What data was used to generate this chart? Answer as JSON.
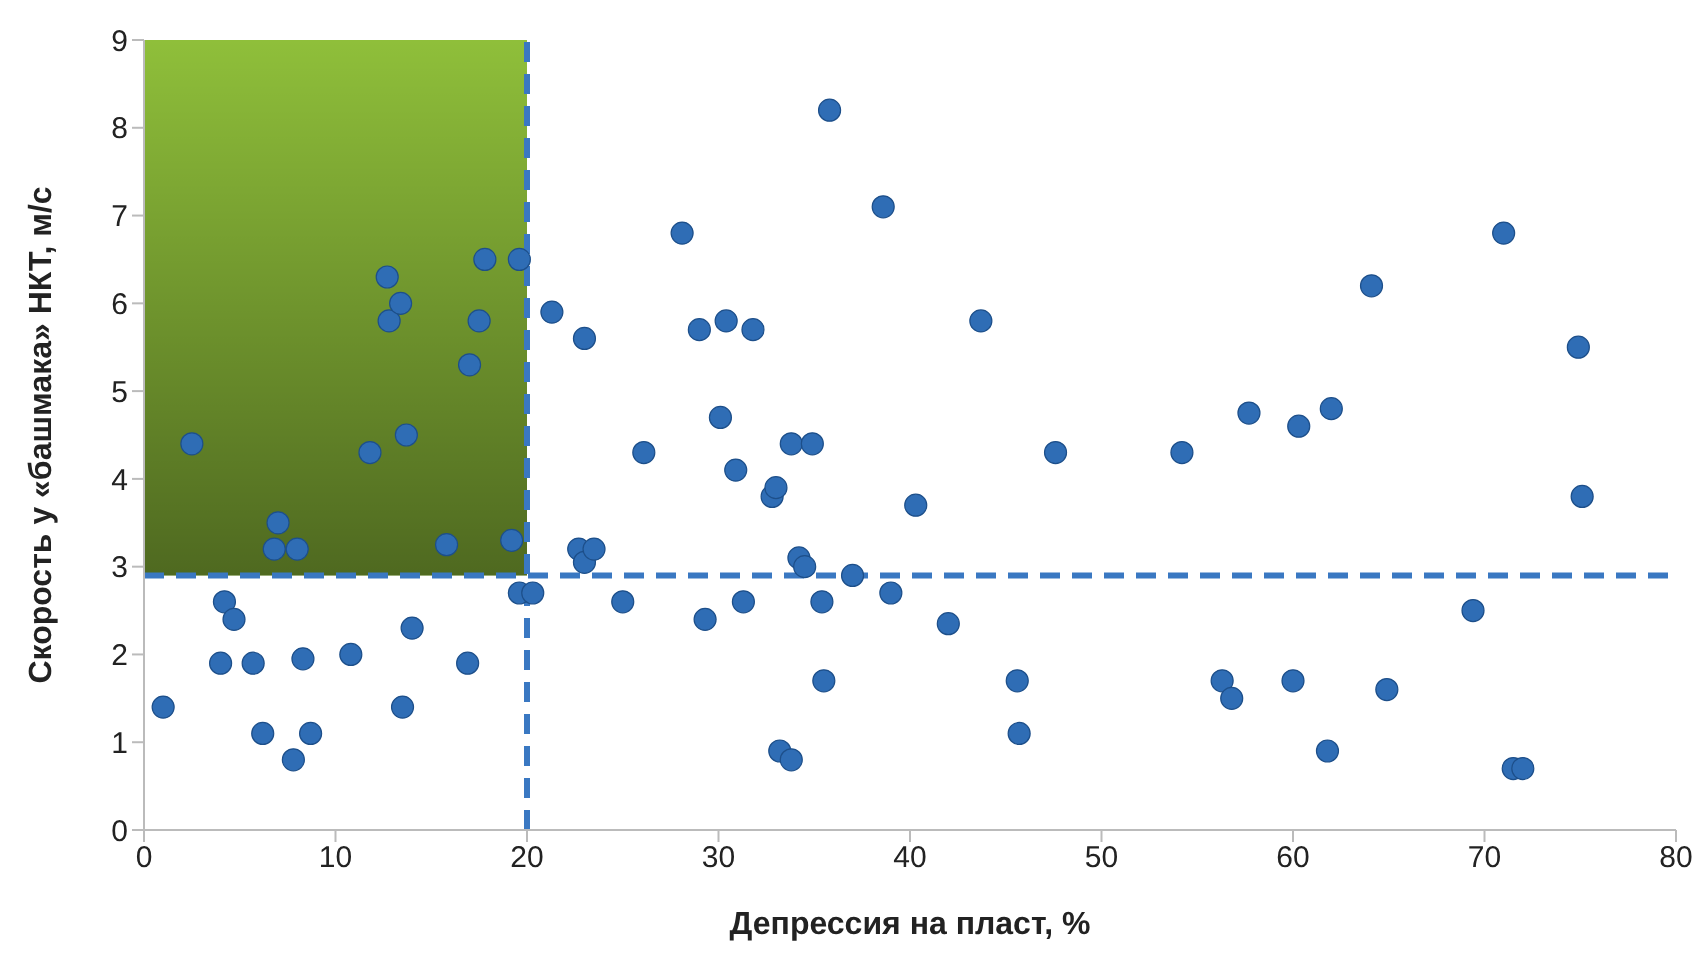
{
  "chart_data": {
    "type": "scatter",
    "xlabel": "Депрессия на пласт, %",
    "ylabel": "Скорость у «башмака» НКТ, м/с",
    "xlim": [
      0,
      80
    ],
    "xticks": [
      0,
      10,
      20,
      30,
      40,
      50,
      60,
      70,
      80
    ],
    "ylim": [
      0,
      9
    ],
    "yticks": [
      0,
      1,
      2,
      3,
      4,
      5,
      6,
      7,
      8,
      9
    ],
    "marker": "circle",
    "series": [
      {
        "color": "#2f6db5",
        "x": [
          1,
          2.5,
          4,
          4.2,
          4.7,
          5.7,
          6.2,
          6.8,
          7,
          7.8,
          8,
          8.3,
          8.7,
          10.8,
          11.8,
          12.7,
          12.8,
          13.4,
          13.5,
          13.7,
          14,
          15.8,
          16.9,
          17,
          17.5,
          17.8,
          19.2,
          19.6,
          19.6,
          20.3,
          21.3,
          22.7,
          23,
          23,
          23.5,
          25,
          26.1,
          28.1,
          29,
          29.3,
          30.1,
          30.4,
          30.9,
          31.3,
          31.8,
          32.8,
          33,
          33.2,
          33.8,
          33.8,
          34.2,
          34.5,
          34.9,
          35.4,
          35.5,
          35.8,
          37,
          38.6,
          39,
          40.3,
          42,
          43.7,
          45.6,
          45.7,
          47.6,
          54.2,
          56.3,
          56.8,
          57.7,
          60,
          60.3,
          61.8,
          62,
          64.1,
          64.9,
          69.4,
          71,
          71.5,
          72,
          74.9,
          75.1
        ],
        "values": [
          1.4,
          4.4,
          1.9,
          2.6,
          2.4,
          1.9,
          1.1,
          3.2,
          3.5,
          0.8,
          3.2,
          1.95,
          1.1,
          2,
          4.3,
          6.3,
          5.8,
          6,
          1.4,
          4.5,
          2.3,
          3.25,
          1.9,
          5.3,
          5.8,
          6.5,
          3.3,
          6.5,
          2.7,
          2.7,
          5.9,
          3.2,
          3.05,
          5.6,
          3.2,
          2.6,
          4.3,
          6.8,
          5.7,
          2.4,
          4.7,
          5.8,
          4.1,
          2.6,
          5.7,
          3.8,
          3.9,
          0.9,
          4.4,
          0.8,
          3.1,
          3,
          4.4,
          2.6,
          1.7,
          8.2,
          2.9,
          7.1,
          2.7,
          3.7,
          2.35,
          5.8,
          1.7,
          1.1,
          4.3,
          4.3,
          1.7,
          1.5,
          4.75,
          1.7,
          4.6,
          0.9,
          4.8,
          6.2,
          1.6,
          2.5,
          6.8,
          0.7,
          0.7,
          5.5,
          3.8
        ]
      }
    ],
    "ref_lines": [
      {
        "axis": "x",
        "value": 20,
        "color": "#3a78c2",
        "line_style": "dashed"
      },
      {
        "axis": "y",
        "value": 2.9,
        "color": "#3a78c2",
        "line_style": "dashed"
      }
    ],
    "bands": [
      {
        "axis": "x",
        "from": 0,
        "to": 20,
        "color": "#8fbf3a"
      }
    ]
  }
}
